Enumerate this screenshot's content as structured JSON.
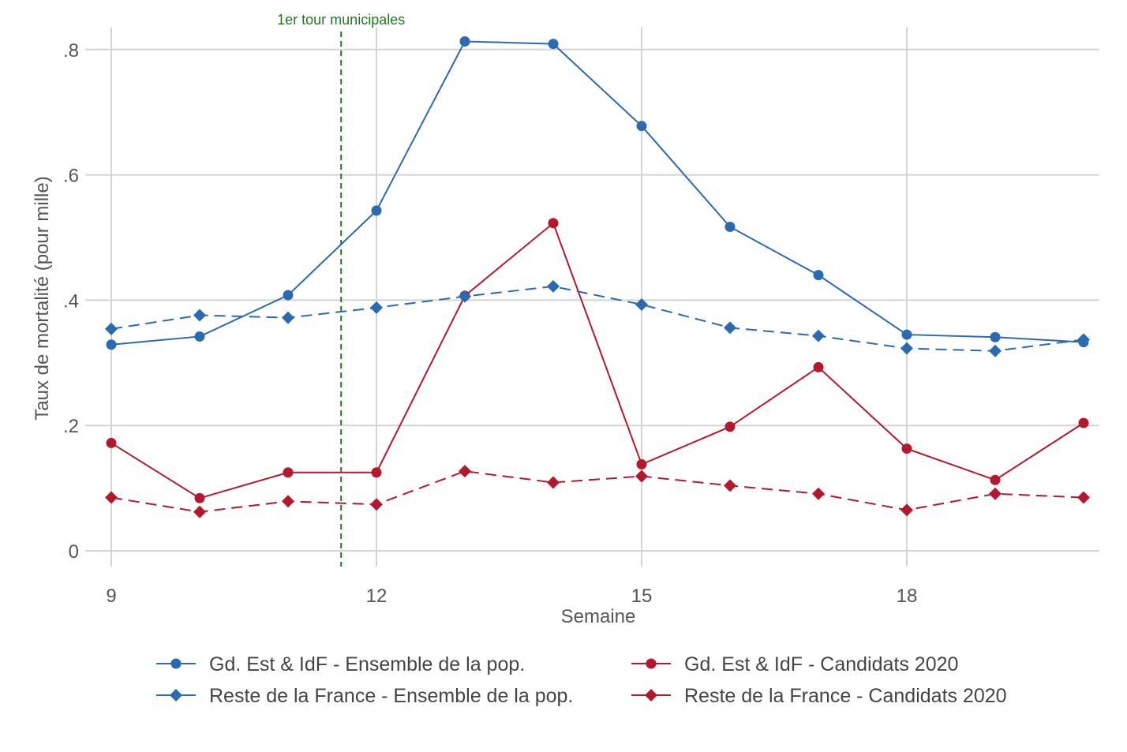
{
  "chart_data": {
    "type": "line",
    "title": "",
    "xlabel": "Semaine",
    "ylabel": "Taux de mortalité (pour mille)",
    "xlim": [
      9,
      20
    ],
    "ylim": [
      0,
      0.85
    ],
    "x_ticks": [
      9,
      12,
      15,
      18
    ],
    "x_tick_labels": [
      "9",
      "12",
      "15",
      "18"
    ],
    "y_ticks": [
      0,
      0.2,
      0.4,
      0.6,
      0.8
    ],
    "y_tick_labels": [
      "0",
      ".2",
      ".4",
      ".6",
      ".8"
    ],
    "grid": true,
    "legend_position": "bottom",
    "x": [
      9,
      10,
      11,
      12,
      13,
      14,
      15,
      16,
      17,
      18,
      19,
      20
    ],
    "series": [
      {
        "name": "Gd. Est & IdF - Ensemble de la pop.",
        "color": "#2a6ab0",
        "marker": "circle",
        "dash": "solid",
        "values": [
          0.329,
          0.342,
          0.408,
          0.543,
          0.813,
          0.809,
          0.678,
          0.517,
          0.44,
          0.345,
          0.341,
          0.333
        ]
      },
      {
        "name": "Reste de la France - Ensemble de la pop.",
        "color": "#2a6ab0",
        "marker": "diamond",
        "dash": "dashed",
        "values": [
          0.354,
          0.376,
          0.372,
          0.388,
          0.406,
          0.422,
          0.393,
          0.356,
          0.343,
          0.323,
          0.319,
          0.337
        ]
      },
      {
        "name": "Gd. Est & IdF - Candidats 2020",
        "color": "#b5182d",
        "marker": "circle",
        "dash": "solid",
        "values": [
          0.172,
          0.084,
          0.125,
          0.125,
          0.407,
          0.523,
          0.138,
          0.198,
          0.293,
          0.163,
          0.113,
          0.204
        ]
      },
      {
        "name": "Reste de la France - Candidats 2020",
        "color": "#b5182d",
        "marker": "diamond",
        "dash": "dashed",
        "values": [
          0.085,
          0.062,
          0.079,
          0.074,
          0.127,
          0.109,
          0.119,
          0.104,
          0.091,
          0.065,
          0.091,
          0.085
        ]
      }
    ],
    "annotations": [
      {
        "x": 11.6,
        "label": "1er tour municipales",
        "color": "#1f7a1f",
        "style": "vertical dashed line"
      }
    ]
  }
}
